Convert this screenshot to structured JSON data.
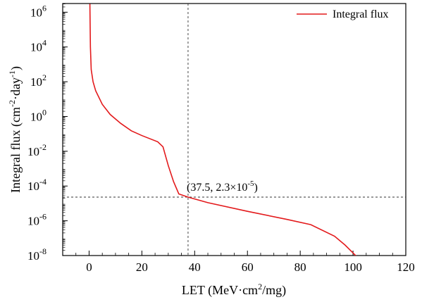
{
  "chart_data": {
    "type": "line",
    "xlabel": "LET (MeV·cm²/mg)",
    "ylabel": "Integral flux (cm⁻²·day⁻¹)",
    "xlim": [
      -10,
      120
    ],
    "ylim_log10": [
      -8,
      6.5
    ],
    "y_scale": "log",
    "x_ticks": [
      0,
      20,
      40,
      60,
      80,
      100,
      120
    ],
    "x_tick_labels": [
      "0",
      "20",
      "40",
      "60",
      "80",
      "100",
      "120"
    ],
    "y_ticks_log10": [
      -8,
      -6,
      -4,
      -2,
      0,
      2,
      4,
      6
    ],
    "y_tick_labels": [
      {
        "base": "10",
        "exp": "-8"
      },
      {
        "base": "10",
        "exp": "-6"
      },
      {
        "base": "10",
        "exp": "-4"
      },
      {
        "base": "10",
        "exp": "-2"
      },
      {
        "base": "10",
        "exp": "0"
      },
      {
        "base": "10",
        "exp": "2"
      },
      {
        "base": "10",
        "exp": "4"
      },
      {
        "base": "10",
        "exp": "6"
      }
    ],
    "legend": {
      "position": "top-right",
      "entries": [
        "Integral flux"
      ]
    },
    "series": [
      {
        "name": "Integral flux",
        "color": "#e31a1c",
        "points": [
          {
            "x": 0.3,
            "y": 3000000
          },
          {
            "x": 0.5,
            "y": 10000
          },
          {
            "x": 0.8,
            "y": 500
          },
          {
            "x": 1.5,
            "y": 100
          },
          {
            "x": 2.5,
            "y": 30
          },
          {
            "x": 5.0,
            "y": 5
          },
          {
            "x": 8.0,
            "y": 1.3
          },
          {
            "x": 12.0,
            "y": 0.4
          },
          {
            "x": 16.0,
            "y": 0.15
          },
          {
            "x": 20.0,
            "y": 0.08
          },
          {
            "x": 26.0,
            "y": 0.035
          },
          {
            "x": 28.0,
            "y": 0.018
          },
          {
            "x": 30.0,
            "y": 0.0015
          },
          {
            "x": 32.0,
            "y": 0.00018
          },
          {
            "x": 34.0,
            "y": 3.5e-05
          },
          {
            "x": 37.5,
            "y": 2.3e-05
          },
          {
            "x": 45.0,
            "y": 1.1e-05
          },
          {
            "x": 60.0,
            "y": 3.5e-06
          },
          {
            "x": 75.0,
            "y": 1.2e-06
          },
          {
            "x": 84.0,
            "y": 6e-07
          },
          {
            "x": 93.0,
            "y": 1.3e-07
          },
          {
            "x": 97.0,
            "y": 4e-08
          },
          {
            "x": 101.0,
            "y": 1e-08
          },
          {
            "x": 104.0,
            "y": 3e-09
          }
        ]
      }
    ],
    "reference_point": {
      "x": 37.5,
      "y": 2.3e-05
    },
    "annotation": {
      "text_main": "(37.5, 2.3×10",
      "text_exp": "-5",
      "text_close": ")"
    }
  }
}
